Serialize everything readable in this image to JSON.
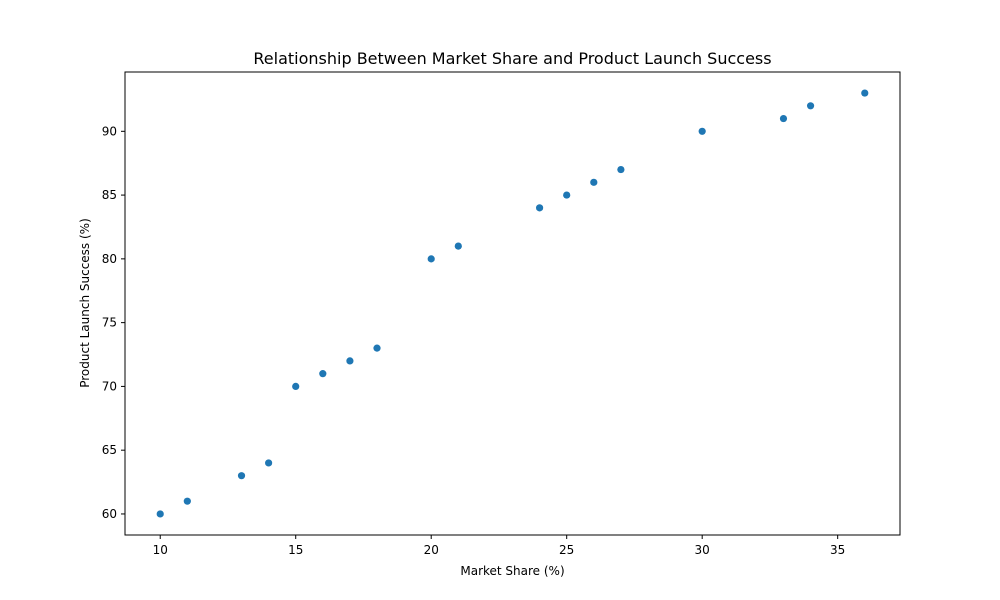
{
  "chart_data": {
    "type": "scatter",
    "title": "Relationship Between Market Share and Product Launch Success",
    "xlabel": "Market Share (%)",
    "ylabel": "Product Launch Success (%)",
    "xlim": [
      8.7,
      37.3
    ],
    "ylim": [
      58.35,
      94.65
    ],
    "xticks": [
      10,
      15,
      20,
      25,
      30,
      35
    ],
    "yticks": [
      60,
      65,
      70,
      75,
      80,
      85,
      90
    ],
    "grid": false,
    "series": [
      {
        "color": "#1f77b4",
        "x": [
          10,
          11,
          13,
          14,
          15,
          16,
          17,
          18,
          20,
          21,
          24,
          25,
          26,
          27,
          30,
          33,
          34,
          36
        ],
        "y": [
          60,
          61,
          63,
          64,
          70,
          71,
          72,
          73,
          80,
          81,
          84,
          85,
          86,
          87,
          90,
          91,
          92,
          93
        ]
      }
    ]
  }
}
